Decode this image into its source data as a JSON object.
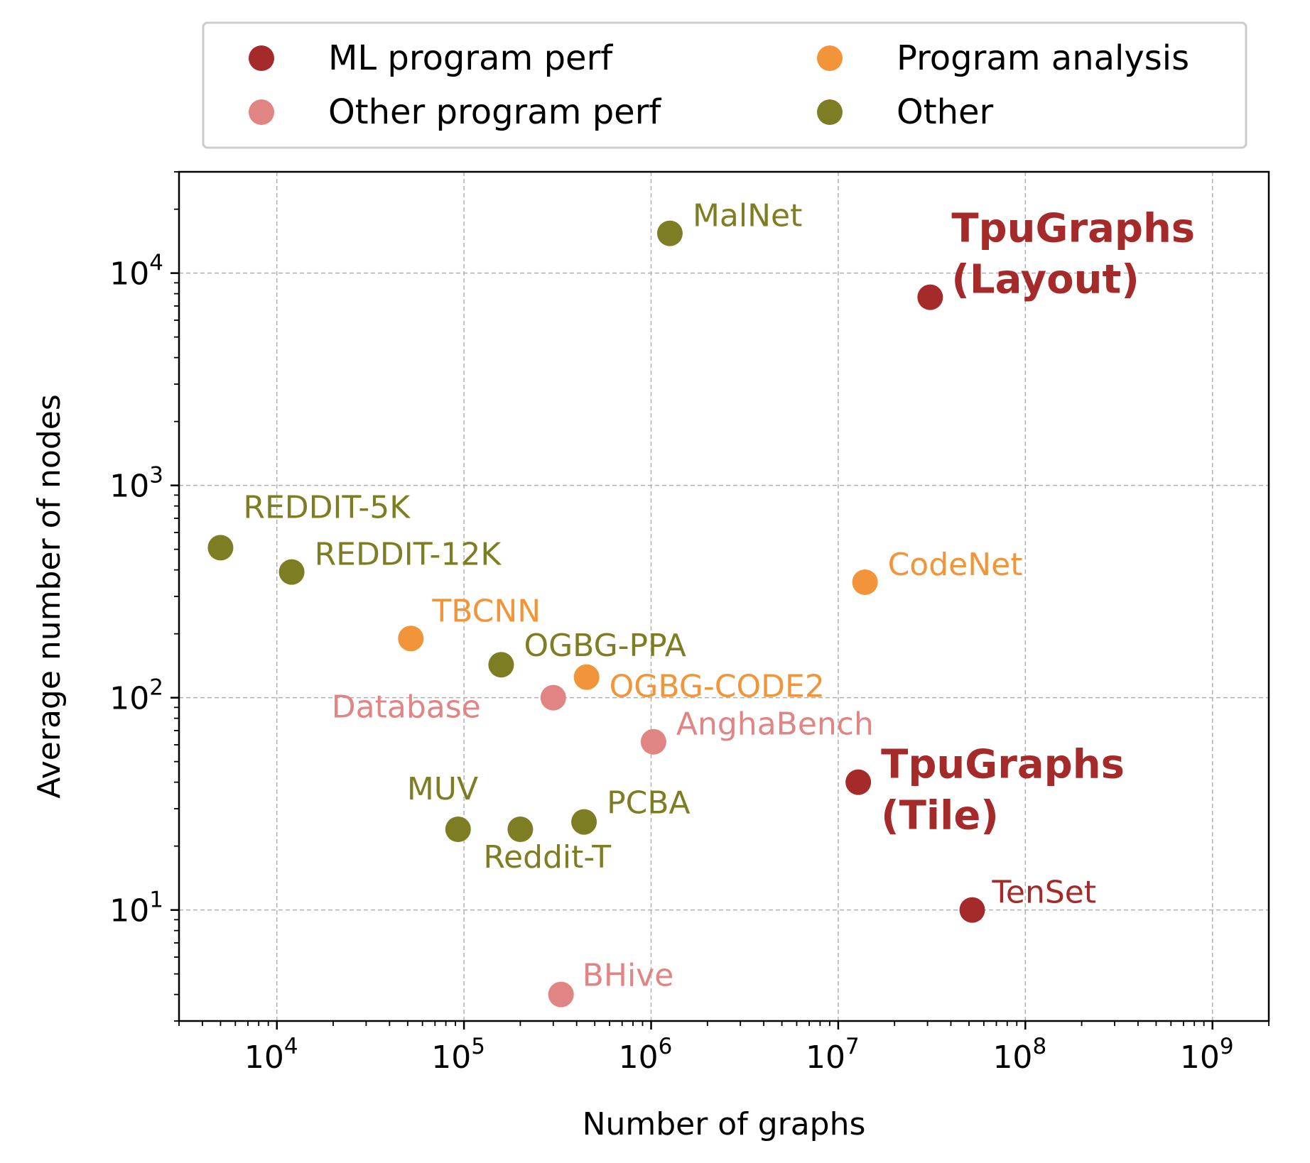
{
  "chart_data": {
    "type": "scatter",
    "title": "",
    "xlabel": "Number of graphs",
    "ylabel": "Average number of nodes",
    "x_scale": "log",
    "y_scale": "log",
    "xlim": [
      3000,
      2000000000
    ],
    "ylim": [
      3,
      30000
    ],
    "grid": true,
    "legend_position": "top, above plot, 2 columns",
    "x_ticks": [
      {
        "value": 10000,
        "base": "10",
        "exp": "4"
      },
      {
        "value": 100000,
        "base": "10",
        "exp": "5"
      },
      {
        "value": 1000000,
        "base": "10",
        "exp": "6"
      },
      {
        "value": 10000000,
        "base": "10",
        "exp": "7"
      },
      {
        "value": 100000000,
        "base": "10",
        "exp": "8"
      },
      {
        "value": 1000000000,
        "base": "10",
        "exp": "9"
      }
    ],
    "y_ticks": [
      {
        "value": 10,
        "base": "10",
        "exp": "1"
      },
      {
        "value": 100,
        "base": "10",
        "exp": "2"
      },
      {
        "value": 1000,
        "base": "10",
        "exp": "3"
      },
      {
        "value": 10000,
        "base": "10",
        "exp": "4"
      }
    ],
    "series": [
      {
        "name": "ML program perf",
        "color": "#a52a2a"
      },
      {
        "name": "Other program perf",
        "color": "#e08484"
      },
      {
        "name": "Program analysis",
        "color": "#f2953a"
      },
      {
        "name": "Other",
        "color": "#7d7d23"
      }
    ],
    "points": [
      {
        "label": [
          "TpuGraphs",
          "(Layout)"
        ],
        "x": 31000000,
        "y": 7700,
        "series": 0,
        "bold": true
      },
      {
        "label": [
          "TpuGraphs",
          "(Tile)"
        ],
        "x": 12800000,
        "y": 40,
        "series": 0,
        "bold": true
      },
      {
        "label": [
          "TenSet"
        ],
        "x": 52000000,
        "y": 10,
        "series": 0
      },
      {
        "label": [
          "Database"
        ],
        "x": 300000,
        "y": 100,
        "series": 1
      },
      {
        "label": [
          "AnghaBench"
        ],
        "x": 1030000,
        "y": 62,
        "series": 1
      },
      {
        "label": [
          "BHive"
        ],
        "x": 330000,
        "y": 4,
        "series": 1
      },
      {
        "label": [
          "CodeNet"
        ],
        "x": 13900000,
        "y": 350,
        "series": 2
      },
      {
        "label": [
          "TBCNN"
        ],
        "x": 52000,
        "y": 190,
        "series": 2
      },
      {
        "label": [
          "OGBG-CODE2"
        ],
        "x": 452000,
        "y": 125,
        "series": 2
      },
      {
        "label": [
          "MalNet"
        ],
        "x": 1260000,
        "y": 15400,
        "series": 3
      },
      {
        "label": [
          "REDDIT-5K"
        ],
        "x": 5000,
        "y": 509,
        "series": 3
      },
      {
        "label": [
          "REDDIT-12K"
        ],
        "x": 12000,
        "y": 391,
        "series": 3
      },
      {
        "label": [
          "OGBG-PPA"
        ],
        "x": 158000,
        "y": 143,
        "series": 3
      },
      {
        "label": [
          "MUV"
        ],
        "x": 93000,
        "y": 24,
        "series": 3
      },
      {
        "label": [
          "Reddit-T"
        ],
        "x": 200000,
        "y": 24,
        "series": 3
      },
      {
        "label": [
          "PCBA"
        ],
        "x": 438000,
        "y": 26,
        "series": 3
      }
    ]
  }
}
